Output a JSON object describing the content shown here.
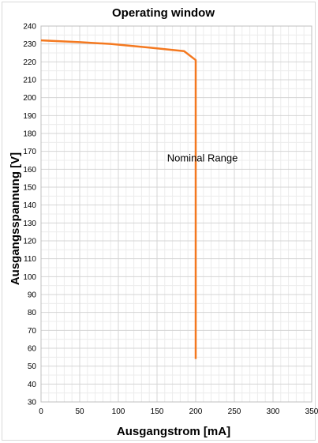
{
  "chart_data": {
    "type": "line",
    "title": "Operating window",
    "xlabel": "Ausgangstrom [mA]",
    "ylabel": "Ausgangsspannung [V]",
    "xlim": [
      0,
      350
    ],
    "ylim": [
      30,
      240
    ],
    "xticks": [
      0,
      50,
      100,
      150,
      200,
      250,
      300,
      350
    ],
    "yticks": [
      30,
      40,
      50,
      60,
      70,
      80,
      90,
      100,
      110,
      120,
      130,
      140,
      150,
      160,
      170,
      180,
      190,
      200,
      210,
      220,
      230,
      240
    ],
    "grid": true,
    "series": [
      {
        "x": [
          0,
          50,
          90,
          140,
          185,
          200,
          200
        ],
        "y": [
          232,
          231,
          230,
          228,
          226,
          221,
          54
        ],
        "color": "#f47920"
      }
    ],
    "annotations": [
      {
        "text": "Nominal Range",
        "x": 163,
        "y": 166
      }
    ]
  }
}
